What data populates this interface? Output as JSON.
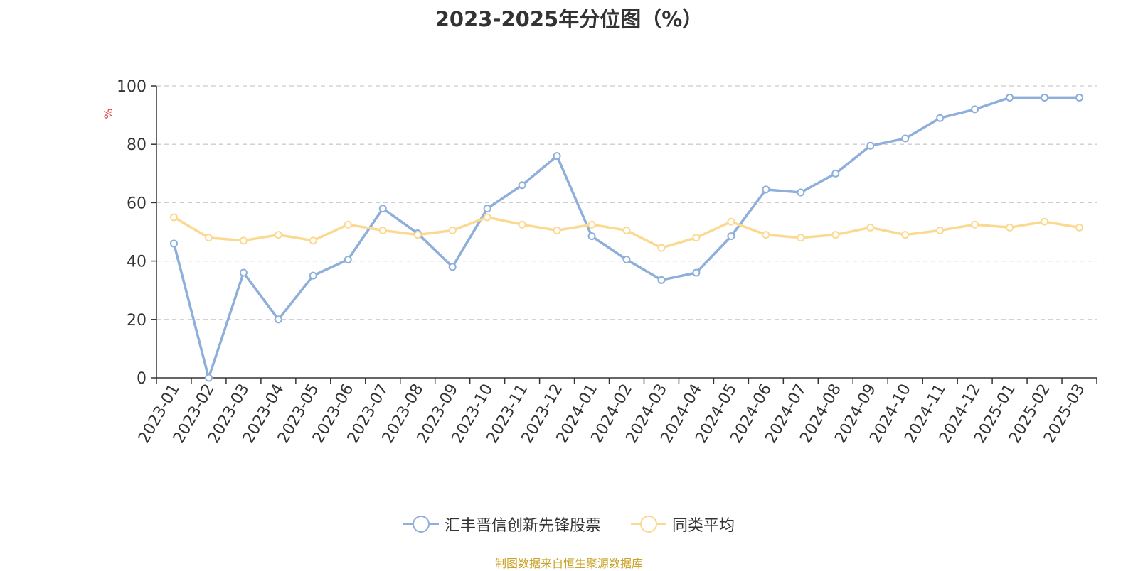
{
  "chart_data": {
    "type": "line",
    "title": "2023-2025年分位图（%）",
    "ylabel": "%",
    "xlabel": "",
    "ylim": [
      0,
      100
    ],
    "yticks": [
      0,
      20,
      40,
      60,
      80,
      100
    ],
    "grid": true,
    "legend_position": "bottom",
    "categories": [
      "2023-01",
      "2023-02",
      "2023-03",
      "2023-04",
      "2023-05",
      "2023-06",
      "2023-07",
      "2023-08",
      "2023-09",
      "2023-10",
      "2023-11",
      "2023-12",
      "2024-01",
      "2024-02",
      "2024-03",
      "2024-04",
      "2024-05",
      "2024-06",
      "2024-07",
      "2024-08",
      "2024-09",
      "2024-10",
      "2024-11",
      "2024-12",
      "2025-01",
      "2025-02",
      "2025-03"
    ],
    "series": [
      {
        "name": "汇丰晋信创新先锋股票",
        "color": "#8eaedb",
        "values": [
          46,
          0,
          36,
          20,
          35,
          40.5,
          58,
          49.5,
          38,
          58,
          66,
          76,
          48.5,
          40.5,
          33.5,
          36,
          48.5,
          64.5,
          63.5,
          70,
          79.5,
          82,
          89,
          92,
          96,
          96,
          96
        ]
      },
      {
        "name": "同类平均",
        "color": "#fcd991",
        "values": [
          55,
          48,
          47,
          49,
          47,
          52.5,
          50.5,
          49,
          50.5,
          55,
          52.5,
          50.5,
          52.5,
          50.5,
          44.5,
          48,
          53.5,
          49,
          48,
          49,
          51.5,
          49,
          50.5,
          52.5,
          51.5,
          53.5,
          51.5
        ]
      }
    ]
  },
  "source": "制图数据来自恒生聚源数据库"
}
